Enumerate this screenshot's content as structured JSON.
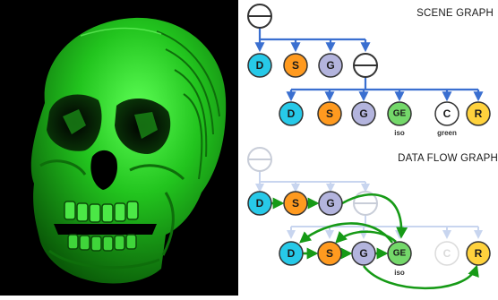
{
  "scene_graph": {
    "title": "SCENE GRAPH",
    "row1": [
      {
        "label": "D",
        "fill": "#27c9e8"
      },
      {
        "label": "S",
        "fill": "#ff9a1f"
      },
      {
        "label": "G",
        "fill": "#b3b4dd"
      }
    ],
    "row2": [
      {
        "label": "D",
        "fill": "#27c9e8",
        "sub": ""
      },
      {
        "label": "S",
        "fill": "#ff9a1f",
        "sub": ""
      },
      {
        "label": "G",
        "fill": "#b3b4dd",
        "sub": ""
      },
      {
        "label": "GE",
        "fill": "#74d86a",
        "sub": "iso"
      },
      {
        "label": "C",
        "fill": "#ffffff",
        "sub": "green"
      },
      {
        "label": "R",
        "fill": "#ffd23d",
        "sub": ""
      }
    ]
  },
  "data_flow_graph": {
    "title": "DATA FLOW GRAPH",
    "row1": [
      {
        "label": "D",
        "fill": "#27c9e8"
      },
      {
        "label": "S",
        "fill": "#ff9a1f"
      },
      {
        "label": "G",
        "fill": "#b3b4dd"
      }
    ],
    "row2": [
      {
        "label": "D",
        "fill": "#27c9e8",
        "sub": ""
      },
      {
        "label": "S",
        "fill": "#ff9a1f",
        "sub": ""
      },
      {
        "label": "G",
        "fill": "#b3b4dd",
        "sub": ""
      },
      {
        "label": "GE",
        "fill": "#74d86a",
        "sub": "iso"
      },
      {
        "label": "C",
        "fill": "#ffffff",
        "sub": ""
      },
      {
        "label": "R",
        "fill": "#ffd23d",
        "sub": ""
      }
    ]
  },
  "colors": {
    "edge": "#3a6fd0",
    "faded_edge": "#c8d5ef",
    "flow_arrow": "#169a16",
    "skull": "#22c41e",
    "background_left": "#000000"
  }
}
